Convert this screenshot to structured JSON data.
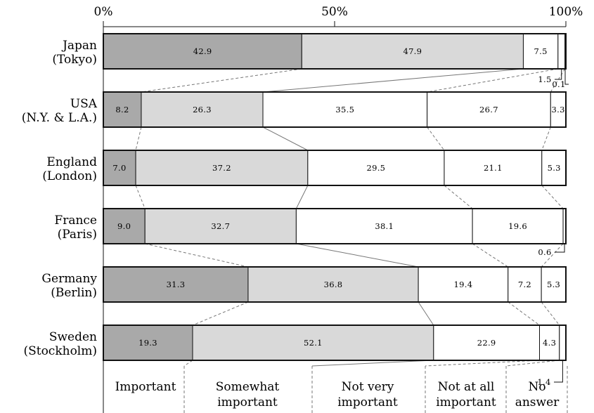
{
  "chart_data": {
    "type": "bar",
    "orientation": "horizontal",
    "stacked": true,
    "xlim": [
      0,
      100
    ],
    "ticks": [
      "0%",
      "50%",
      "100%"
    ],
    "tick_values": [
      0,
      50,
      100
    ],
    "categories": [
      [
        "Japan",
        "(Tokyo)"
      ],
      [
        "USA",
        "(N.Y. & L.A.)"
      ],
      [
        "England",
        "(London)"
      ],
      [
        "France",
        "(Paris)"
      ],
      [
        "Germany",
        "(Berlin)"
      ],
      [
        "Sweden",
        "(Stockholm)"
      ]
    ],
    "series": [
      {
        "name": "Important",
        "legend": [
          "Important"
        ],
        "color": "#a9a9a9",
        "values": [
          42.9,
          8.2,
          7.0,
          9.0,
          31.3,
          19.3
        ],
        "labels": [
          "42.9",
          "8.2",
          "7.0",
          "9.0",
          "31.3",
          "19.3"
        ]
      },
      {
        "name": "Somewhat important",
        "legend": [
          "Somewhat",
          "important"
        ],
        "color": "#d9d9d9",
        "values": [
          47.9,
          26.3,
          37.2,
          32.7,
          36.8,
          52.1
        ],
        "labels": [
          "47.9",
          "26.3",
          "37.2",
          "32.7",
          "36.8",
          "52.1"
        ]
      },
      {
        "name": "Not very important",
        "legend": [
          "Not very",
          "important"
        ],
        "color": "#ffffff",
        "values": [
          7.5,
          35.5,
          29.5,
          38.1,
          19.4,
          22.9
        ],
        "labels": [
          "7.5",
          "35.5",
          "29.5",
          "38.1",
          "19.4",
          "22.9"
        ]
      },
      {
        "name": "Not at all important",
        "legend": [
          "Not at all",
          "important"
        ],
        "color": "#ffffff",
        "values": [
          1.5,
          26.7,
          21.1,
          19.6,
          7.2,
          4.3
        ],
        "labels": [
          "",
          "26.7",
          "21.1",
          "19.6",
          "7.2",
          "4.3"
        ]
      },
      {
        "name": "No answer",
        "legend": [
          "No",
          "answer"
        ],
        "color": "#ffffff",
        "values": [
          0.1,
          3.3,
          5.3,
          0.6,
          5.3,
          1.4
        ],
        "labels": [
          "",
          "3.3",
          "5.3",
          "",
          "5.3",
          ""
        ]
      }
    ],
    "callouts": [
      {
        "row": 0,
        "series": 3,
        "text": "1.5"
      },
      {
        "row": 0,
        "series": 4,
        "text": "0.1"
      },
      {
        "row": 3,
        "series": 4,
        "text": "0.6"
      },
      {
        "row": 5,
        "series": 4,
        "text": "1.4"
      }
    ],
    "grid": false,
    "legend_position": "bottom"
  }
}
